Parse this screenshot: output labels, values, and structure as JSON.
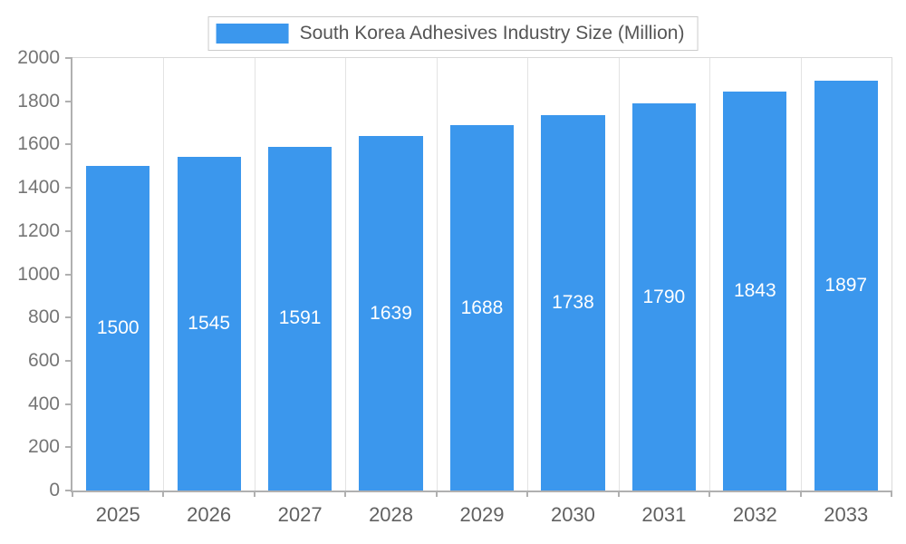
{
  "colors": {
    "bar": "#3B97ED",
    "legend_border": "#cccccc",
    "gridline": "#e3e3e3",
    "axis": "#b0b0b0",
    "axis_label": "#757575",
    "x_label": "#616161",
    "title_text": "#555555",
    "bar_value_text": "#ffffff"
  },
  "legend": {
    "label": "South Korea Adhesives Industry Size (Million)"
  },
  "chart_data": {
    "type": "bar",
    "title": "South Korea Adhesives Industry Size (Million)",
    "categories": [
      "2025",
      "2026",
      "2027",
      "2028",
      "2029",
      "2030",
      "2031",
      "2032",
      "2033"
    ],
    "values": [
      1500,
      1545,
      1591,
      1639,
      1688,
      1738,
      1790,
      1843,
      1897
    ],
    "xlabel": "",
    "ylabel": "",
    "ylim": [
      0,
      2000
    ],
    "y_tick_step": 200,
    "y_tick_labels": [
      "0",
      "200",
      "400",
      "600",
      "800",
      "1000",
      "1200",
      "1400",
      "1600",
      "1800",
      "2000"
    ],
    "grid": "vertical",
    "legend_position": "top-center",
    "bar_value_labels_inside": true
  }
}
